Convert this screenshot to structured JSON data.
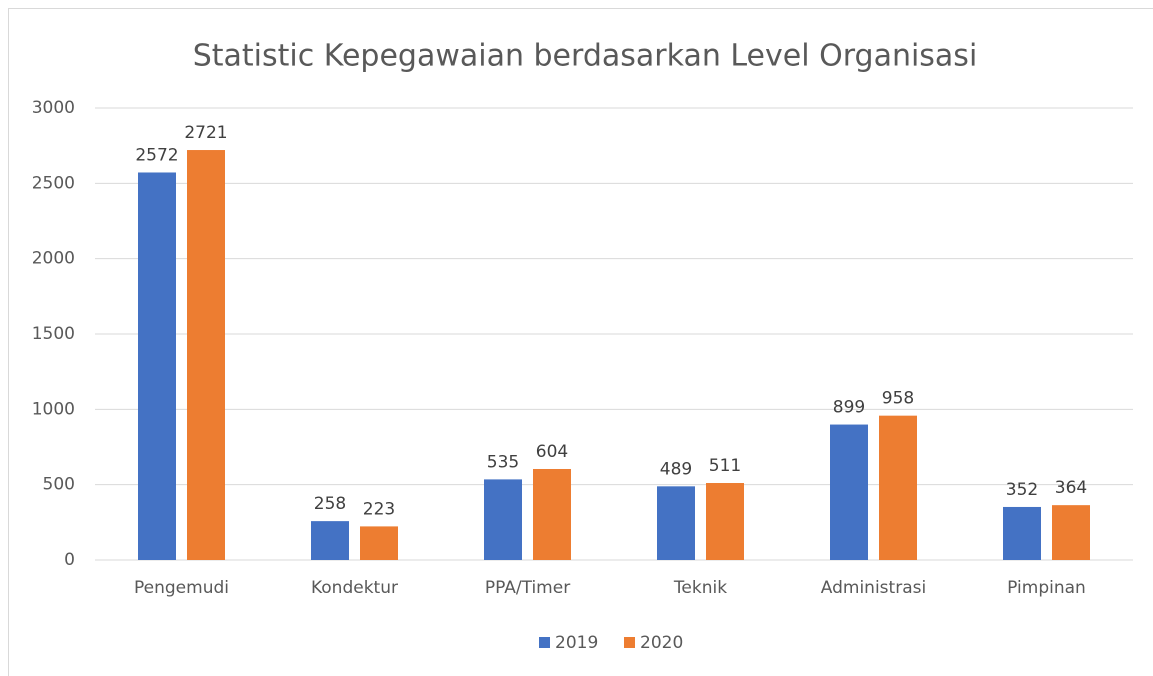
{
  "chart_data": {
    "type": "bar",
    "title": "Statistic Kepegawaian berdasarkan Level Organisasi",
    "categories": [
      "Pengemudi",
      "Kondektur",
      "PPA/Timer",
      "Teknik",
      "Administrasi",
      "Pimpinan"
    ],
    "series": [
      {
        "name": "2019",
        "color": "#4472c4",
        "values": [
          2572,
          258,
          535,
          489,
          899,
          352
        ]
      },
      {
        "name": "2020",
        "color": "#ed7d31",
        "values": [
          2721,
          223,
          604,
          511,
          958,
          364
        ]
      }
    ],
    "ylim": [
      0,
      3000
    ],
    "yticks": [
      0,
      500,
      1000,
      1500,
      2000,
      2500,
      3000
    ],
    "grid": true,
    "legend": "bottom"
  }
}
